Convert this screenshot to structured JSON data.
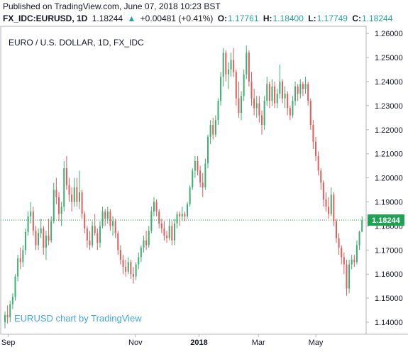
{
  "published": "Published on TradingView.com, June 07, 2018 10:23 BST",
  "header": {
    "symbol": "FX_IDC:EURUSD, 1D",
    "price": "1.18244",
    "arrow": "▲",
    "change": "+0.00481 (+0.41%)",
    "o_label": "O:",
    "o_value": "1.17761",
    "h_label": "H:",
    "h_value": "1.18400",
    "l_label": "L:",
    "l_value": "1.17749",
    "c_label": "C:",
    "c_value": "1.18244"
  },
  "watermark": "EURUSD chart by TradingView",
  "colors": {
    "up": "#3cae6f",
    "down": "#e35b5b",
    "accent": "#26a69a",
    "last_price": "#21a154",
    "watermark": "#3fa6e6",
    "grid": "#e0e3eb"
  },
  "chart_data": {
    "type": "candlestick",
    "title": "EURO / U.S. DOLLAR, 1D, FX_IDC",
    "ylim": [
      1.135,
      1.263
    ],
    "y_ticks": [
      "1.26000",
      "1.25000",
      "1.24000",
      "1.23000",
      "1.22000",
      "1.21000",
      "1.20000",
      "1.19000",
      "1.18000",
      "1.17000",
      "1.16000",
      "1.15000",
      "1.14000"
    ],
    "x_ticks": [
      "Sep",
      "Nov",
      "2018",
      "Mar",
      "May"
    ],
    "last_price": 1.18244,
    "last_price_label": "1.18244",
    "grid": false,
    "series": [
      {
        "o": 1.14,
        "h": 1.1445,
        "l": 1.1375,
        "c": 1.143
      },
      {
        "o": 1.143,
        "h": 1.147,
        "l": 1.1395,
        "c": 1.142
      },
      {
        "o": 1.142,
        "h": 1.149,
        "l": 1.14,
        "c": 1.1475
      },
      {
        "o": 1.1475,
        "h": 1.152,
        "l": 1.1455,
        "c": 1.1505
      },
      {
        "o": 1.1505,
        "h": 1.16,
        "l": 1.149,
        "c": 1.159
      },
      {
        "o": 1.159,
        "h": 1.168,
        "l": 1.157,
        "c": 1.1665
      },
      {
        "o": 1.1665,
        "h": 1.171,
        "l": 1.162,
        "c": 1.165
      },
      {
        "o": 1.165,
        "h": 1.172,
        "l": 1.163,
        "c": 1.17
      },
      {
        "o": 1.17,
        "h": 1.179,
        "l": 1.168,
        "c": 1.1775
      },
      {
        "o": 1.1775,
        "h": 1.186,
        "l": 1.176,
        "c": 1.184
      },
      {
        "o": 1.184,
        "h": 1.19,
        "l": 1.181,
        "c": 1.186
      },
      {
        "o": 1.186,
        "h": 1.188,
        "l": 1.176,
        "c": 1.178
      },
      {
        "o": 1.178,
        "h": 1.18,
        "l": 1.17,
        "c": 1.172
      },
      {
        "o": 1.172,
        "h": 1.179,
        "l": 1.17,
        "c": 1.177
      },
      {
        "o": 1.177,
        "h": 1.183,
        "l": 1.175,
        "c": 1.179
      },
      {
        "o": 1.179,
        "h": 1.18,
        "l": 1.168,
        "c": 1.171
      },
      {
        "o": 1.171,
        "h": 1.178,
        "l": 1.166,
        "c": 1.176
      },
      {
        "o": 1.176,
        "h": 1.183,
        "l": 1.172,
        "c": 1.174
      },
      {
        "o": 1.174,
        "h": 1.184,
        "l": 1.173,
        "c": 1.182
      },
      {
        "o": 1.182,
        "h": 1.198,
        "l": 1.181,
        "c": 1.195
      },
      {
        "o": 1.195,
        "h": 1.2,
        "l": 1.189,
        "c": 1.192
      },
      {
        "o": 1.192,
        "h": 1.194,
        "l": 1.182,
        "c": 1.185
      },
      {
        "o": 1.185,
        "h": 1.19,
        "l": 1.18,
        "c": 1.188
      },
      {
        "o": 1.188,
        "h": 1.207,
        "l": 1.186,
        "c": 1.204
      },
      {
        "o": 1.204,
        "h": 1.209,
        "l": 1.195,
        "c": 1.197
      },
      {
        "o": 1.197,
        "h": 1.2,
        "l": 1.19,
        "c": 1.193
      },
      {
        "o": 1.193,
        "h": 1.196,
        "l": 1.186,
        "c": 1.19
      },
      {
        "o": 1.19,
        "h": 1.2,
        "l": 1.188,
        "c": 1.196
      },
      {
        "o": 1.196,
        "h": 1.2,
        "l": 1.188,
        "c": 1.19
      },
      {
        "o": 1.19,
        "h": 1.203,
        "l": 1.187,
        "c": 1.194
      },
      {
        "o": 1.194,
        "h": 1.195,
        "l": 1.183,
        "c": 1.185
      },
      {
        "o": 1.185,
        "h": 1.186,
        "l": 1.177,
        "c": 1.179
      },
      {
        "o": 1.179,
        "h": 1.18,
        "l": 1.171,
        "c": 1.174
      },
      {
        "o": 1.174,
        "h": 1.178,
        "l": 1.17,
        "c": 1.172
      },
      {
        "o": 1.172,
        "h": 1.182,
        "l": 1.171,
        "c": 1.18
      },
      {
        "o": 1.18,
        "h": 1.185,
        "l": 1.176,
        "c": 1.177
      },
      {
        "o": 1.177,
        "h": 1.179,
        "l": 1.17,
        "c": 1.173
      },
      {
        "o": 1.173,
        "h": 1.182,
        "l": 1.171,
        "c": 1.18
      },
      {
        "o": 1.18,
        "h": 1.188,
        "l": 1.179,
        "c": 1.186
      },
      {
        "o": 1.186,
        "h": 1.187,
        "l": 1.18,
        "c": 1.183
      },
      {
        "o": 1.183,
        "h": 1.188,
        "l": 1.181,
        "c": 1.186
      },
      {
        "o": 1.186,
        "h": 1.187,
        "l": 1.178,
        "c": 1.18
      },
      {
        "o": 1.18,
        "h": 1.184,
        "l": 1.176,
        "c": 1.182
      },
      {
        "o": 1.182,
        "h": 1.183,
        "l": 1.175,
        "c": 1.177
      },
      {
        "o": 1.177,
        "h": 1.178,
        "l": 1.168,
        "c": 1.17
      },
      {
        "o": 1.17,
        "h": 1.172,
        "l": 1.164,
        "c": 1.166
      },
      {
        "o": 1.166,
        "h": 1.168,
        "l": 1.16,
        "c": 1.163
      },
      {
        "o": 1.163,
        "h": 1.166,
        "l": 1.159,
        "c": 1.161
      },
      {
        "o": 1.161,
        "h": 1.167,
        "l": 1.16,
        "c": 1.165
      },
      {
        "o": 1.165,
        "h": 1.166,
        "l": 1.158,
        "c": 1.16
      },
      {
        "o": 1.16,
        "h": 1.163,
        "l": 1.156,
        "c": 1.159
      },
      {
        "o": 1.159,
        "h": 1.165,
        "l": 1.1575,
        "c": 1.164
      },
      {
        "o": 1.164,
        "h": 1.169,
        "l": 1.162,
        "c": 1.167
      },
      {
        "o": 1.167,
        "h": 1.172,
        "l": 1.165,
        "c": 1.171
      },
      {
        "o": 1.171,
        "h": 1.176,
        "l": 1.169,
        "c": 1.174
      },
      {
        "o": 1.174,
        "h": 1.178,
        "l": 1.17,
        "c": 1.172
      },
      {
        "o": 1.172,
        "h": 1.18,
        "l": 1.171,
        "c": 1.178
      },
      {
        "o": 1.178,
        "h": 1.188,
        "l": 1.177,
        "c": 1.186
      },
      {
        "o": 1.186,
        "h": 1.192,
        "l": 1.184,
        "c": 1.19
      },
      {
        "o": 1.19,
        "h": 1.191,
        "l": 1.184,
        "c": 1.186
      },
      {
        "o": 1.186,
        "h": 1.187,
        "l": 1.179,
        "c": 1.181
      },
      {
        "o": 1.181,
        "h": 1.183,
        "l": 1.177,
        "c": 1.179
      },
      {
        "o": 1.179,
        "h": 1.182,
        "l": 1.174,
        "c": 1.176
      },
      {
        "o": 1.176,
        "h": 1.178,
        "l": 1.173,
        "c": 1.175
      },
      {
        "o": 1.175,
        "h": 1.183,
        "l": 1.174,
        "c": 1.18
      },
      {
        "o": 1.18,
        "h": 1.182,
        "l": 1.172,
        "c": 1.174
      },
      {
        "o": 1.174,
        "h": 1.183,
        "l": 1.172,
        "c": 1.181
      },
      {
        "o": 1.181,
        "h": 1.186,
        "l": 1.179,
        "c": 1.185
      },
      {
        "o": 1.185,
        "h": 1.186,
        "l": 1.18,
        "c": 1.184
      },
      {
        "o": 1.184,
        "h": 1.188,
        "l": 1.182,
        "c": 1.185
      },
      {
        "o": 1.185,
        "h": 1.186,
        "l": 1.182,
        "c": 1.184
      },
      {
        "o": 1.184,
        "h": 1.19,
        "l": 1.183,
        "c": 1.189
      },
      {
        "o": 1.189,
        "h": 1.197,
        "l": 1.188,
        "c": 1.196
      },
      {
        "o": 1.196,
        "h": 1.204,
        "l": 1.195,
        "c": 1.203
      },
      {
        "o": 1.203,
        "h": 1.209,
        "l": 1.2,
        "c": 1.207
      },
      {
        "o": 1.207,
        "h": 1.209,
        "l": 1.201,
        "c": 1.203
      },
      {
        "o": 1.203,
        "h": 1.205,
        "l": 1.196,
        "c": 1.198
      },
      {
        "o": 1.198,
        "h": 1.202,
        "l": 1.192,
        "c": 1.196
      },
      {
        "o": 1.196,
        "h": 1.208,
        "l": 1.195,
        "c": 1.206
      },
      {
        "o": 1.206,
        "h": 1.218,
        "l": 1.204,
        "c": 1.217
      },
      {
        "o": 1.217,
        "h": 1.224,
        "l": 1.214,
        "c": 1.222
      },
      {
        "o": 1.222,
        "h": 1.225,
        "l": 1.216,
        "c": 1.218
      },
      {
        "o": 1.218,
        "h": 1.226,
        "l": 1.217,
        "c": 1.224
      },
      {
        "o": 1.224,
        "h": 1.233,
        "l": 1.222,
        "c": 1.232
      },
      {
        "o": 1.232,
        "h": 1.244,
        "l": 1.23,
        "c": 1.242
      },
      {
        "o": 1.242,
        "h": 1.254,
        "l": 1.238,
        "c": 1.252
      },
      {
        "o": 1.252,
        "h": 1.253,
        "l": 1.24,
        "c": 1.243
      },
      {
        "o": 1.243,
        "h": 1.248,
        "l": 1.237,
        "c": 1.245
      },
      {
        "o": 1.245,
        "h": 1.252,
        "l": 1.242,
        "c": 1.249
      },
      {
        "o": 1.249,
        "h": 1.254,
        "l": 1.242,
        "c": 1.244
      },
      {
        "o": 1.244,
        "h": 1.245,
        "l": 1.23,
        "c": 1.233
      },
      {
        "o": 1.233,
        "h": 1.24,
        "l": 1.225,
        "c": 1.227
      },
      {
        "o": 1.227,
        "h": 1.236,
        "l": 1.224,
        "c": 1.234
      },
      {
        "o": 1.234,
        "h": 1.245,
        "l": 1.232,
        "c": 1.243
      },
      {
        "o": 1.243,
        "h": 1.255,
        "l": 1.241,
        "c": 1.252
      },
      {
        "o": 1.252,
        "h": 1.253,
        "l": 1.238,
        "c": 1.24
      },
      {
        "o": 1.24,
        "h": 1.244,
        "l": 1.23,
        "c": 1.233
      },
      {
        "o": 1.233,
        "h": 1.237,
        "l": 1.226,
        "c": 1.229
      },
      {
        "o": 1.229,
        "h": 1.234,
        "l": 1.225,
        "c": 1.231
      },
      {
        "o": 1.231,
        "h": 1.234,
        "l": 1.223,
        "c": 1.226
      },
      {
        "o": 1.226,
        "h": 1.228,
        "l": 1.218,
        "c": 1.222
      },
      {
        "o": 1.222,
        "h": 1.234,
        "l": 1.22,
        "c": 1.232
      },
      {
        "o": 1.232,
        "h": 1.242,
        "l": 1.23,
        "c": 1.239
      },
      {
        "o": 1.239,
        "h": 1.24,
        "l": 1.229,
        "c": 1.232
      },
      {
        "o": 1.232,
        "h": 1.241,
        "l": 1.23,
        "c": 1.238
      },
      {
        "o": 1.238,
        "h": 1.24,
        "l": 1.229,
        "c": 1.231
      },
      {
        "o": 1.231,
        "h": 1.237,
        "l": 1.229,
        "c": 1.235
      },
      {
        "o": 1.235,
        "h": 1.247,
        "l": 1.233,
        "c": 1.24
      },
      {
        "o": 1.24,
        "h": 1.241,
        "l": 1.231,
        "c": 1.233
      },
      {
        "o": 1.233,
        "h": 1.238,
        "l": 1.229,
        "c": 1.235
      },
      {
        "o": 1.235,
        "h": 1.236,
        "l": 1.226,
        "c": 1.229
      },
      {
        "o": 1.229,
        "h": 1.23,
        "l": 1.224,
        "c": 1.226
      },
      {
        "o": 1.226,
        "h": 1.234,
        "l": 1.225,
        "c": 1.232
      },
      {
        "o": 1.232,
        "h": 1.24,
        "l": 1.23,
        "c": 1.238
      },
      {
        "o": 1.238,
        "h": 1.239,
        "l": 1.232,
        "c": 1.235
      },
      {
        "o": 1.235,
        "h": 1.241,
        "l": 1.233,
        "c": 1.239
      },
      {
        "o": 1.239,
        "h": 1.24,
        "l": 1.234,
        "c": 1.237
      },
      {
        "o": 1.237,
        "h": 1.242,
        "l": 1.235,
        "c": 1.239
      },
      {
        "o": 1.239,
        "h": 1.24,
        "l": 1.23,
        "c": 1.232
      },
      {
        "o": 1.232,
        "h": 1.233,
        "l": 1.22,
        "c": 1.222
      },
      {
        "o": 1.222,
        "h": 1.224,
        "l": 1.212,
        "c": 1.215
      },
      {
        "o": 1.215,
        "h": 1.217,
        "l": 1.207,
        "c": 1.209
      },
      {
        "o": 1.209,
        "h": 1.211,
        "l": 1.201,
        "c": 1.203
      },
      {
        "o": 1.203,
        "h": 1.204,
        "l": 1.195,
        "c": 1.198
      },
      {
        "o": 1.198,
        "h": 1.199,
        "l": 1.188,
        "c": 1.191
      },
      {
        "o": 1.191,
        "h": 1.194,
        "l": 1.186,
        "c": 1.188
      },
      {
        "o": 1.188,
        "h": 1.192,
        "l": 1.183,
        "c": 1.185
      },
      {
        "o": 1.185,
        "h": 1.196,
        "l": 1.184,
        "c": 1.193
      },
      {
        "o": 1.193,
        "h": 1.194,
        "l": 1.18,
        "c": 1.182
      },
      {
        "o": 1.182,
        "h": 1.183,
        "l": 1.173,
        "c": 1.175
      },
      {
        "o": 1.175,
        "h": 1.177,
        "l": 1.168,
        "c": 1.171
      },
      {
        "o": 1.171,
        "h": 1.172,
        "l": 1.164,
        "c": 1.167
      },
      {
        "o": 1.167,
        "h": 1.169,
        "l": 1.16,
        "c": 1.164
      },
      {
        "o": 1.164,
        "h": 1.166,
        "l": 1.151,
        "c": 1.154
      },
      {
        "o": 1.154,
        "h": 1.166,
        "l": 1.152,
        "c": 1.164
      },
      {
        "o": 1.164,
        "h": 1.168,
        "l": 1.162,
        "c": 1.166
      },
      {
        "o": 1.166,
        "h": 1.168,
        "l": 1.163,
        "c": 1.165
      },
      {
        "o": 1.165,
        "h": 1.174,
        "l": 1.164,
        "c": 1.172
      },
      {
        "o": 1.172,
        "h": 1.178,
        "l": 1.17,
        "c": 1.1776
      },
      {
        "o": 1.1776,
        "h": 1.184,
        "l": 1.1775,
        "c": 1.1824
      }
    ]
  }
}
